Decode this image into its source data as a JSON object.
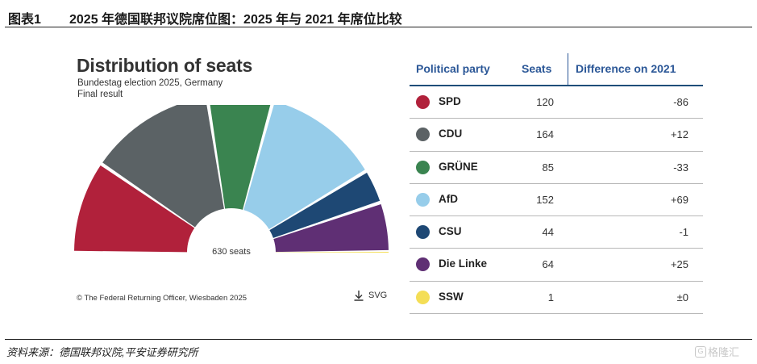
{
  "figure": {
    "number": "图表1",
    "title": "2025 年德国联邦议院席位图：2025 年与 2021 年席位比较",
    "source": "资料来源：德国联邦议院,平安证券研究所",
    "logo_mark": "G",
    "logo_text": "格隆汇"
  },
  "chart_data": {
    "type": "hemicycle",
    "title": "Distribution of seats",
    "subtitle_lines": [
      "Bundestag election 2025, Germany",
      "Final result"
    ],
    "center_label": "630 seats",
    "total_seats": 630,
    "source_note": "© The Federal Returning Officer, Wiesbaden 2025",
    "download_label": "SVG",
    "columns": [
      "Political party",
      "Seats",
      "Difference on 2021"
    ],
    "parties": [
      {
        "name": "SPD",
        "seats": 120,
        "diff": "-86",
        "color": "#b1213b"
      },
      {
        "name": "CDU",
        "seats": 164,
        "diff": "+12",
        "color": "#5b6265"
      },
      {
        "name": "GRÜNE",
        "seats": 85,
        "diff": "-33",
        "color": "#3a8450"
      },
      {
        "name": "AfD",
        "seats": 152,
        "diff": "+69",
        "color": "#97cdea"
      },
      {
        "name": "CSU",
        "seats": 44,
        "diff": "-1",
        "color": "#1e4874"
      },
      {
        "name": "Die Linke",
        "seats": 64,
        "diff": "+25",
        "color": "#5f2f74"
      },
      {
        "name": "SSW",
        "seats": 1,
        "diff": "±0",
        "color": "#f4de56"
      }
    ]
  }
}
